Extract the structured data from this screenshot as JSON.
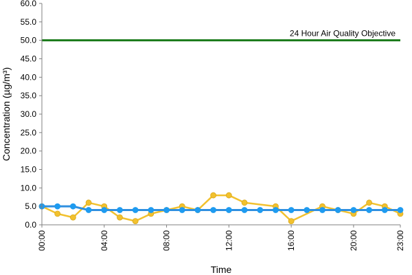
{
  "chart_data": {
    "type": "line",
    "xlabel": "Time",
    "ylabel": "Concentration (µg/m³)",
    "ylim": [
      0,
      60
    ],
    "yticks": [
      "0.0",
      "5.0",
      "10.0",
      "15.0",
      "20.0",
      "25.0",
      "30.0",
      "35.0",
      "40.0",
      "45.0",
      "50.0",
      "55.0",
      "60.0"
    ],
    "xlim": [
      0,
      23
    ],
    "xtick_hours": [
      0,
      4,
      8,
      12,
      16,
      20,
      23
    ],
    "xtick_labels": [
      "00:00",
      "04:00",
      "08:00",
      "12:00",
      "16:00",
      "20:00",
      "23:00"
    ],
    "x": [
      0,
      1,
      2,
      3,
      4,
      5,
      6,
      7,
      8,
      9,
      10,
      11,
      12,
      13,
      14,
      15,
      16,
      17,
      18,
      19,
      20,
      21,
      22,
      23
    ],
    "grid": false,
    "series": [
      {
        "color": "#f2c12e",
        "marker_color": "#f2c12e",
        "values": [
          5,
          3,
          2,
          6,
          5,
          2,
          1,
          3,
          4,
          5,
          4,
          8,
          8,
          6,
          null,
          5,
          1,
          null,
          5,
          4,
          3,
          6,
          5,
          3
        ]
      },
      {
        "color": "#2f8fe0",
        "marker_color": "#1e9bf0",
        "values": [
          5,
          5,
          5,
          4,
          4,
          4,
          4,
          4,
          4,
          4,
          4,
          4,
          4,
          4,
          4,
          4,
          4,
          4,
          4,
          4,
          4,
          4,
          4,
          4
        ]
      }
    ],
    "reference_line": {
      "value": 50,
      "label": "24 Hour Air Quality Objective",
      "color": "#1a7a1a"
    }
  }
}
